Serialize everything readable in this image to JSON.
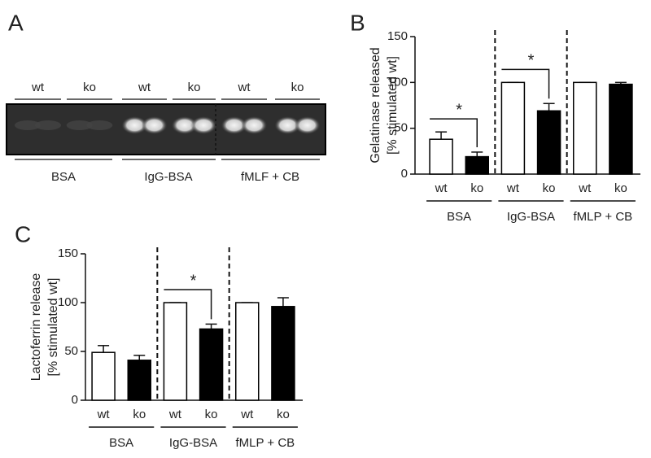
{
  "panel_a": {
    "label": "A",
    "lanes": [
      "wt",
      "ko",
      "wt",
      "ko",
      "wt",
      "ko"
    ],
    "groups": [
      "BSA",
      "IgG-BSA",
      "fMLF + CB"
    ]
  },
  "chart_data": [
    {
      "type": "bar",
      "panel_label": "B",
      "ylabel": [
        "Gelatinase released",
        "[% stimulated wt]"
      ],
      "categories": [
        "wt",
        "ko",
        "wt",
        "ko",
        "wt",
        "ko"
      ],
      "groups": [
        "BSA",
        "IgG-BSA",
        "fMLP + CB"
      ],
      "values": [
        38,
        19,
        100,
        69,
        100,
        98
      ],
      "errors": [
        8,
        5,
        0,
        8,
        0,
        2
      ],
      "colors": [
        "#ffffff",
        "#000000",
        "#ffffff",
        "#000000",
        "#ffffff",
        "#000000"
      ],
      "significance": [
        "*",
        "*",
        null
      ],
      "ylim": [
        0,
        150
      ],
      "yticks": [
        0,
        50,
        100,
        150
      ]
    },
    {
      "type": "bar",
      "panel_label": "C",
      "ylabel": [
        "Lactoferrin release",
        "[% stimulated wt]"
      ],
      "categories": [
        "wt",
        "ko",
        "wt",
        "ko",
        "wt",
        "ko"
      ],
      "groups": [
        "BSA",
        "IgG-BSA",
        "fMLP + CB"
      ],
      "values": [
        49,
        41,
        100,
        73,
        100,
        96
      ],
      "errors": [
        7,
        5,
        0,
        5,
        0,
        9
      ],
      "colors": [
        "#ffffff",
        "#000000",
        "#ffffff",
        "#000000",
        "#ffffff",
        "#000000"
      ],
      "significance": [
        null,
        "*",
        null
      ],
      "ylim": [
        0,
        150
      ],
      "yticks": [
        0,
        50,
        100,
        150
      ]
    }
  ]
}
